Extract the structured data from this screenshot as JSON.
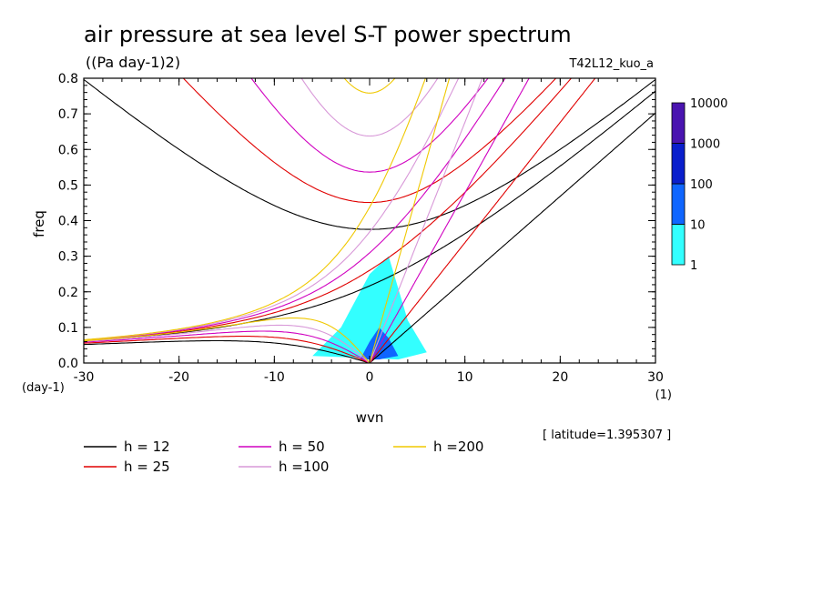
{
  "chart_data": {
    "type": "heatmap",
    "title": "air pressure at sea level S-T power spectrum",
    "subtitle": "((Pa day-1)2)",
    "run_label": "T42L12_kuo_a",
    "xlabel": "wvn",
    "ylabel": "freq",
    "x_unit": "(1)",
    "y_unit": "(day-1)",
    "xlim": [
      -30,
      30
    ],
    "ylim": [
      0,
      0.8
    ],
    "x_ticks": [
      "-30",
      "-20",
      "-10",
      "0",
      "10",
      "20",
      "30"
    ],
    "y_ticks": [
      "0.0",
      "0.1",
      "0.2",
      "0.3",
      "0.4",
      "0.5",
      "0.6",
      "0.7",
      "0.8"
    ],
    "latitude_note": "[ latitude=1.395307 ]",
    "colorbar": {
      "labels": [
        "1",
        "10",
        "100",
        "1000",
        "10000"
      ],
      "colors": [
        "#33ffff",
        "#0f66ff",
        "#0a1fcc",
        "#4a14b0"
      ]
    },
    "contours": [
      {
        "level": 1,
        "color": "#33ffff",
        "x": [
          -6,
          -3,
          0,
          2,
          4,
          6,
          3
        ],
        "y": [
          0.02,
          0.1,
          0.25,
          0.3,
          0.12,
          0.03,
          0.01
        ]
      },
      {
        "level": 10,
        "color": "#0f66ff",
        "x": [
          -1,
          0,
          1,
          2,
          3,
          1
        ],
        "y": [
          0.01,
          0.06,
          0.1,
          0.07,
          0.02,
          0.01
        ]
      }
    ],
    "dispersion_curves": [
      {
        "name": "h = 12",
        "color": "#000000",
        "h": 12
      },
      {
        "name": "h = 25",
        "color": "#e00000",
        "h": 25
      },
      {
        "name": "h = 50",
        "color": "#d000c0",
        "h": 50
      },
      {
        "name": "h =100",
        "color": "#d898d8",
        "h": 100
      },
      {
        "name": "h =200",
        "color": "#f0c800",
        "h": 200
      }
    ]
  }
}
